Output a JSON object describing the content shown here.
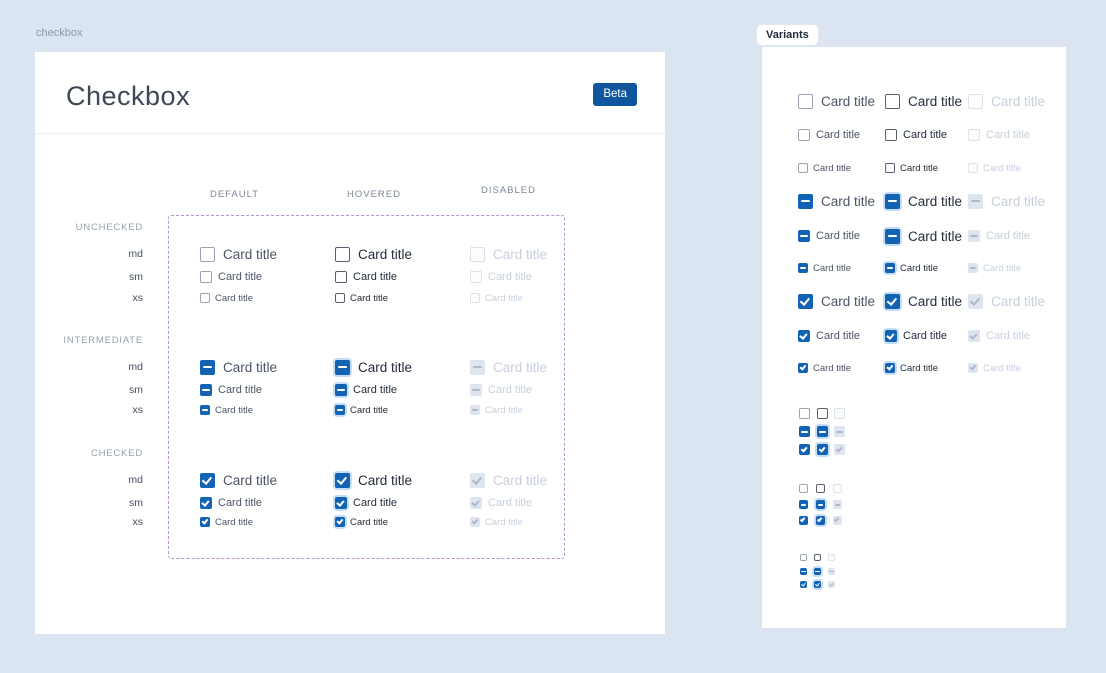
{
  "page": {
    "breadcrumb": "checkbox",
    "background": "#dbe5f1"
  },
  "labels": {
    "card_title": "Card title"
  },
  "doc": {
    "title": "Checkbox",
    "badge": "Beta",
    "column_headers": [
      "DEFAULT",
      "HOVERED",
      "DISABLED"
    ],
    "column_states": [
      "default",
      "hovered",
      "disabled"
    ],
    "row_groups": [
      {
        "label": "UNCHECKED",
        "state": "unchecked"
      },
      {
        "label": "INTERMEDIATE",
        "state": "intermediate"
      },
      {
        "label": "CHECKED",
        "state": "checked"
      }
    ],
    "sizes": [
      "md",
      "sm",
      "xs"
    ]
  },
  "variants": {
    "tab": "Variants",
    "labeled_rows": [
      {
        "state": "unchecked",
        "size": "md"
      },
      {
        "state": "unchecked",
        "size": "sm"
      },
      {
        "state": "unchecked",
        "size": "xs"
      },
      {
        "state": "intermediate",
        "size": "md"
      },
      {
        "state": "intermediate",
        "size": "sm"
      },
      {
        "state": "intermediate",
        "size": "xs"
      },
      {
        "state": "checked",
        "size": "md"
      },
      {
        "state": "checked",
        "size": "sm"
      },
      {
        "state": "checked",
        "size": "xs"
      }
    ],
    "bare_rows": [
      "unchecked",
      "intermediate",
      "checked"
    ],
    "bare_sizes": [
      "md",
      "sm",
      "xs"
    ]
  },
  "colors": {
    "accent_blue": "#1263b4",
    "badge_blue": "#10569f",
    "dashed_outline_purple": "#b692cf",
    "disabled_fill": "#dfe5ef",
    "page_background": "#dbe5f1"
  }
}
